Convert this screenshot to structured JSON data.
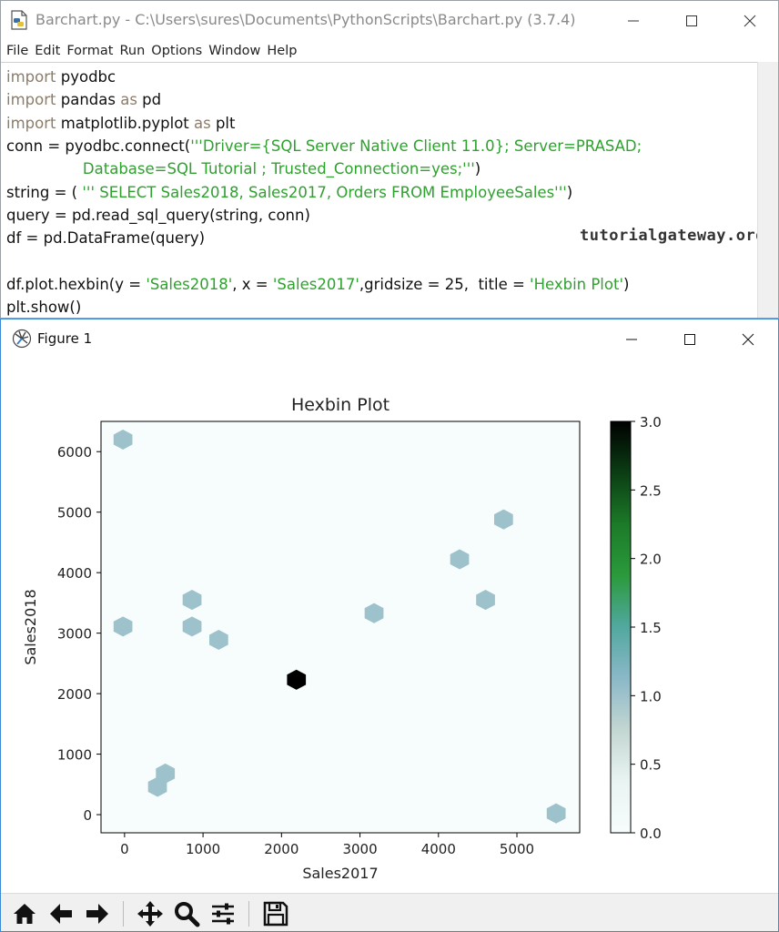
{
  "idle": {
    "title": "Barchart.py - C:\\Users\\sures\\Documents\\PythonScripts\\Barchart.py (3.7.4)",
    "menu": [
      "File",
      "Edit",
      "Format",
      "Run",
      "Options",
      "Window",
      "Help"
    ],
    "code_lines": [
      [
        [
          "kw",
          "import"
        ],
        [
          "txt",
          " pyodbc"
        ]
      ],
      [
        [
          "kw",
          "import"
        ],
        [
          "txt",
          " pandas "
        ],
        [
          "kw",
          "as"
        ],
        [
          "txt",
          " pd"
        ]
      ],
      [
        [
          "kw",
          "import"
        ],
        [
          "txt",
          " matplotlib.pyplot "
        ],
        [
          "kw",
          "as"
        ],
        [
          "txt",
          " plt"
        ]
      ],
      [
        [
          "txt",
          "conn = pyodbc.connect("
        ],
        [
          "str",
          "'''Driver={SQL Server Native Client 11.0}; Server=PRASAD;"
        ]
      ],
      [
        [
          "str",
          "                Database=SQL Tutorial ; Trusted_Connection=yes;'''"
        ],
        [
          "txt",
          ")"
        ]
      ],
      [
        [
          "txt",
          "string = ( "
        ],
        [
          "str",
          "''' SELECT Sales2018, Sales2017, Orders FROM EmployeeSales'''"
        ],
        [
          "txt",
          ")"
        ]
      ],
      [
        [
          "txt",
          "query = pd.read_sql_query(string, conn)"
        ]
      ],
      [
        [
          "txt",
          "df = pd.DataFrame(query)"
        ]
      ],
      [
        [
          "txt",
          ""
        ]
      ],
      [
        [
          "txt",
          "df.plot.hexbin(y = "
        ],
        [
          "str",
          "'Sales2018'"
        ],
        [
          "txt",
          ", x = "
        ],
        [
          "str",
          "'Sales2017'"
        ],
        [
          "txt",
          ",gridsize = 25,  title = "
        ],
        [
          "str",
          "'Hexbin Plot'"
        ],
        [
          "txt",
          ")"
        ]
      ],
      [
        [
          "txt",
          "plt.show()"
        ]
      ]
    ],
    "watermark": "tutorialgateway.org"
  },
  "figure": {
    "title": "Figure 1"
  },
  "toolbar": {
    "buttons": [
      "home-icon",
      "back-arrow-icon",
      "forward-arrow-icon",
      "pan-icon",
      "zoom-icon",
      "subplots-icon",
      "save-icon"
    ]
  },
  "colors": {
    "keyword": "#8b7d6b",
    "string": "#2ea12e",
    "figure_border": "#3c8ad6"
  },
  "chart_data": {
    "type": "hexbin",
    "title": "Hexbin Plot",
    "xlabel": "Sales2017",
    "ylabel": "Sales2018",
    "xlim": [
      -300,
      5800
    ],
    "ylim": [
      -300,
      6500
    ],
    "xticks": [
      0,
      1000,
      2000,
      3000,
      4000,
      5000
    ],
    "yticks": [
      0,
      1000,
      2000,
      3000,
      4000,
      5000,
      6000
    ],
    "gridsize": 25,
    "points": [
      {
        "x": -20,
        "y": 6200,
        "count": 1
      },
      {
        "x": 4830,
        "y": 4880,
        "count": 1
      },
      {
        "x": 4270,
        "y": 4220,
        "count": 1
      },
      {
        "x": 860,
        "y": 3550,
        "count": 1
      },
      {
        "x": 4600,
        "y": 3550,
        "count": 1
      },
      {
        "x": 3180,
        "y": 3330,
        "count": 1
      },
      {
        "x": -20,
        "y": 3110,
        "count": 1
      },
      {
        "x": 860,
        "y": 3110,
        "count": 1
      },
      {
        "x": 1200,
        "y": 2890,
        "count": 1
      },
      {
        "x": 2190,
        "y": 2230,
        "count": 3
      },
      {
        "x": 520,
        "y": 680,
        "count": 1
      },
      {
        "x": 420,
        "y": 460,
        "count": 1
      },
      {
        "x": 5500,
        "y": 20,
        "count": 1
      }
    ],
    "colorbar": {
      "min": 0.0,
      "max": 3.0,
      "ticks": [
        "0.0",
        "0.5",
        "1.0",
        "1.5",
        "2.0",
        "2.5",
        "3.0"
      ],
      "colormap": "BuGn",
      "stops": [
        "#f7fcfd",
        "#e9f4f2",
        "#c3d6d2",
        "#8bb8c8",
        "#52a8a0",
        "#2a9a3c",
        "#1c7a28",
        "#0b3d14",
        "#000000"
      ]
    }
  }
}
